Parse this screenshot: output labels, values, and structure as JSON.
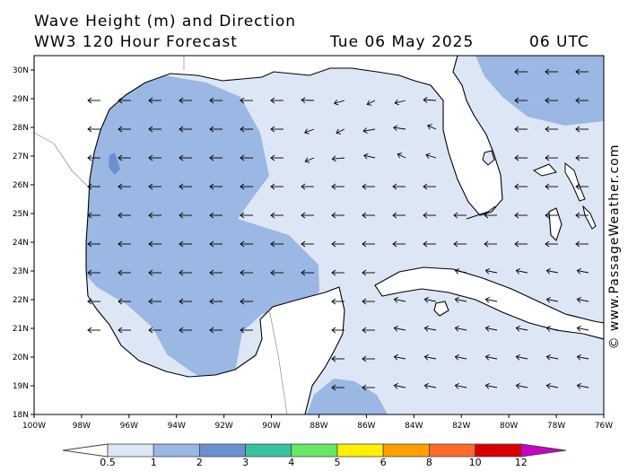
{
  "header": {
    "line1": "Wave Height (m) and Direction",
    "line2": "WW3 120 Hour Forecast",
    "date": "Tue 06 May 2025",
    "time": "06 UTC"
  },
  "credit": "© www.PassageWeather.com",
  "map": {
    "region": "Gulf of Mexico",
    "lon_labels": [
      "100W",
      "98W",
      "96W",
      "94W",
      "92W",
      "90W",
      "88W",
      "86W",
      "84W",
      "82W",
      "80W",
      "78W",
      "76W"
    ],
    "lat_labels": [
      "30N",
      "29N",
      "28N",
      "27N",
      "26N",
      "25N",
      "24N",
      "23N",
      "22N",
      "21N",
      "20N",
      "19N",
      "18N"
    ],
    "wave_direction_arrows": "predominantly pointing west",
    "colors": {
      "land": "#ffffff",
      "coast": "#000000",
      "band_0_5_1": "#dde6f5",
      "band_1_2": "#9bb7e3",
      "band_2_3": "#6c8fd1"
    }
  },
  "legend": {
    "labels": [
      "0.5",
      "1",
      "2",
      "3",
      "4",
      "5",
      "6",
      "8",
      "10",
      "12"
    ],
    "colors": [
      "#dde6f5",
      "#9bb7e3",
      "#6c8fd1",
      "#35c29f",
      "#66e866",
      "#ffef00",
      "#ffa000",
      "#ff6a2a",
      "#d80000",
      "#c800c8"
    ]
  }
}
